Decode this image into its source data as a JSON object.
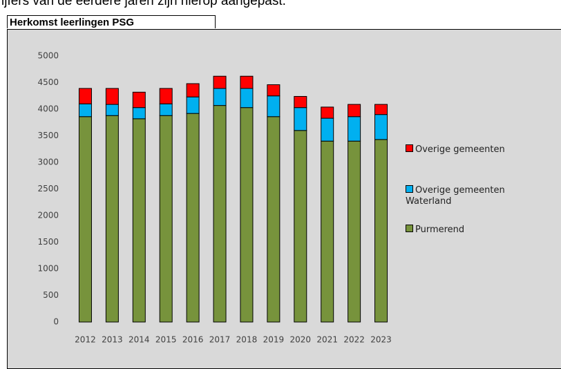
{
  "caption": "ijfers van de eerdere jaren zijn hierop aangepast.",
  "chart_data": {
    "type": "stacked_bar",
    "title": "Herkomst leerlingen PSG",
    "categories": [
      "2012",
      "2013",
      "2014",
      "2015",
      "2016",
      "2017",
      "2018",
      "2019",
      "2020",
      "2021",
      "2022",
      "2023"
    ],
    "series": [
      {
        "name": "Purmerend",
        "color": "#77933c",
        "values": [
          3860,
          3880,
          3820,
          3880,
          3920,
          4070,
          4030,
          3860,
          3600,
          3400,
          3400,
          3430
        ]
      },
      {
        "name": "Overige gemeenten Waterland",
        "color": "#00b0f0",
        "values": [
          240,
          210,
          210,
          220,
          310,
          320,
          360,
          390,
          430,
          430,
          460,
          470
        ]
      },
      {
        "name": "Overige gemeenten",
        "color": "#ff0000",
        "values": [
          290,
          300,
          290,
          290,
          250,
          230,
          230,
          210,
          210,
          210,
          230,
          190
        ]
      }
    ],
    "ylim": [
      0,
      5000
    ],
    "yticks": [
      0,
      500,
      1000,
      1500,
      2000,
      2500,
      3000,
      3500,
      4000,
      4500,
      5000
    ],
    "grid": false,
    "legend": "right"
  }
}
